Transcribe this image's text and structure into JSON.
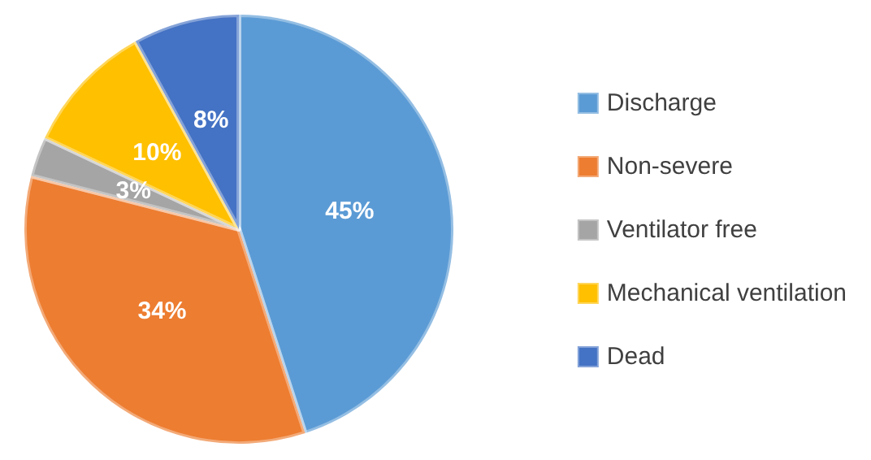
{
  "chart_data": {
    "type": "pie",
    "categories": [
      "Discharge",
      "Non-severe",
      "Ventilator free",
      "Mechanical ventilation",
      "Dead"
    ],
    "values": [
      45,
      34,
      3,
      10,
      8
    ],
    "colors": [
      "#5b9bd5",
      "#ed7d31",
      "#a5a5a5",
      "#ffc000",
      "#4472c4"
    ],
    "value_labels": [
      "45%",
      "34%",
      "3%",
      "10%",
      "8%"
    ],
    "legend": "right"
  }
}
